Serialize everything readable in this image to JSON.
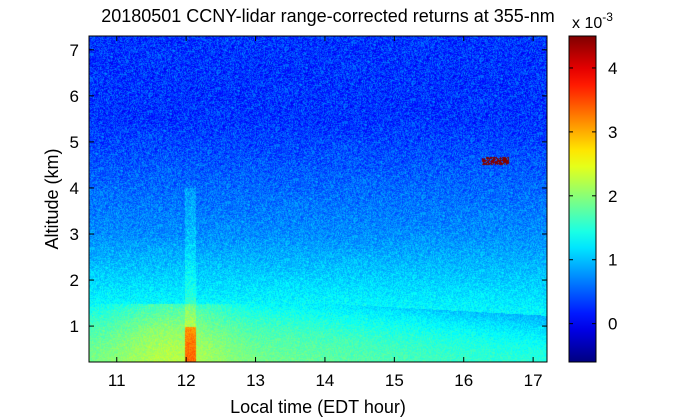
{
  "chart_data": {
    "type": "heatmap",
    "title": "20180501 CCNY-lidar range-corrected returns at 355-nm",
    "xlabel": "Local time (EDT hour)",
    "ylabel": "Altitude (km)",
    "xlim": [
      10.6,
      17.2
    ],
    "ylim": [
      0.22,
      7.3
    ],
    "x_ticks": [
      {
        "value": 11,
        "label": "11"
      },
      {
        "value": 12,
        "label": "12"
      },
      {
        "value": 13,
        "label": "13"
      },
      {
        "value": 14,
        "label": "14"
      },
      {
        "value": 15,
        "label": "15"
      },
      {
        "value": 16,
        "label": "16"
      },
      {
        "value": 17,
        "label": "17"
      }
    ],
    "y_ticks": [
      {
        "value": 1,
        "label": "1"
      },
      {
        "value": 2,
        "label": "2"
      },
      {
        "value": 3,
        "label": "3"
      },
      {
        "value": 4,
        "label": "4"
      },
      {
        "value": 5,
        "label": "5"
      },
      {
        "value": 6,
        "label": "6"
      },
      {
        "value": 7,
        "label": "7"
      }
    ],
    "colorbar": {
      "range": [
        -0.6,
        4.5
      ],
      "multiplier_label": "x 10",
      "multiplier_exponent": "-3",
      "ticks": [
        {
          "value": 0,
          "label": "0"
        },
        {
          "value": 1,
          "label": "1"
        },
        {
          "value": 2,
          "label": "2"
        },
        {
          "value": 3,
          "label": "3"
        },
        {
          "value": 4,
          "label": "4"
        }
      ]
    },
    "colormap": "jet",
    "features": {
      "noisy_background_level": 0.3,
      "boundary_layer_top_km": 1.5,
      "aerosol_layer_top_km": 3.0,
      "cloud_patch": {
        "time_start": 16.25,
        "time_end": 16.65,
        "altitude_km": 4.6,
        "value": 4.5
      }
    }
  }
}
